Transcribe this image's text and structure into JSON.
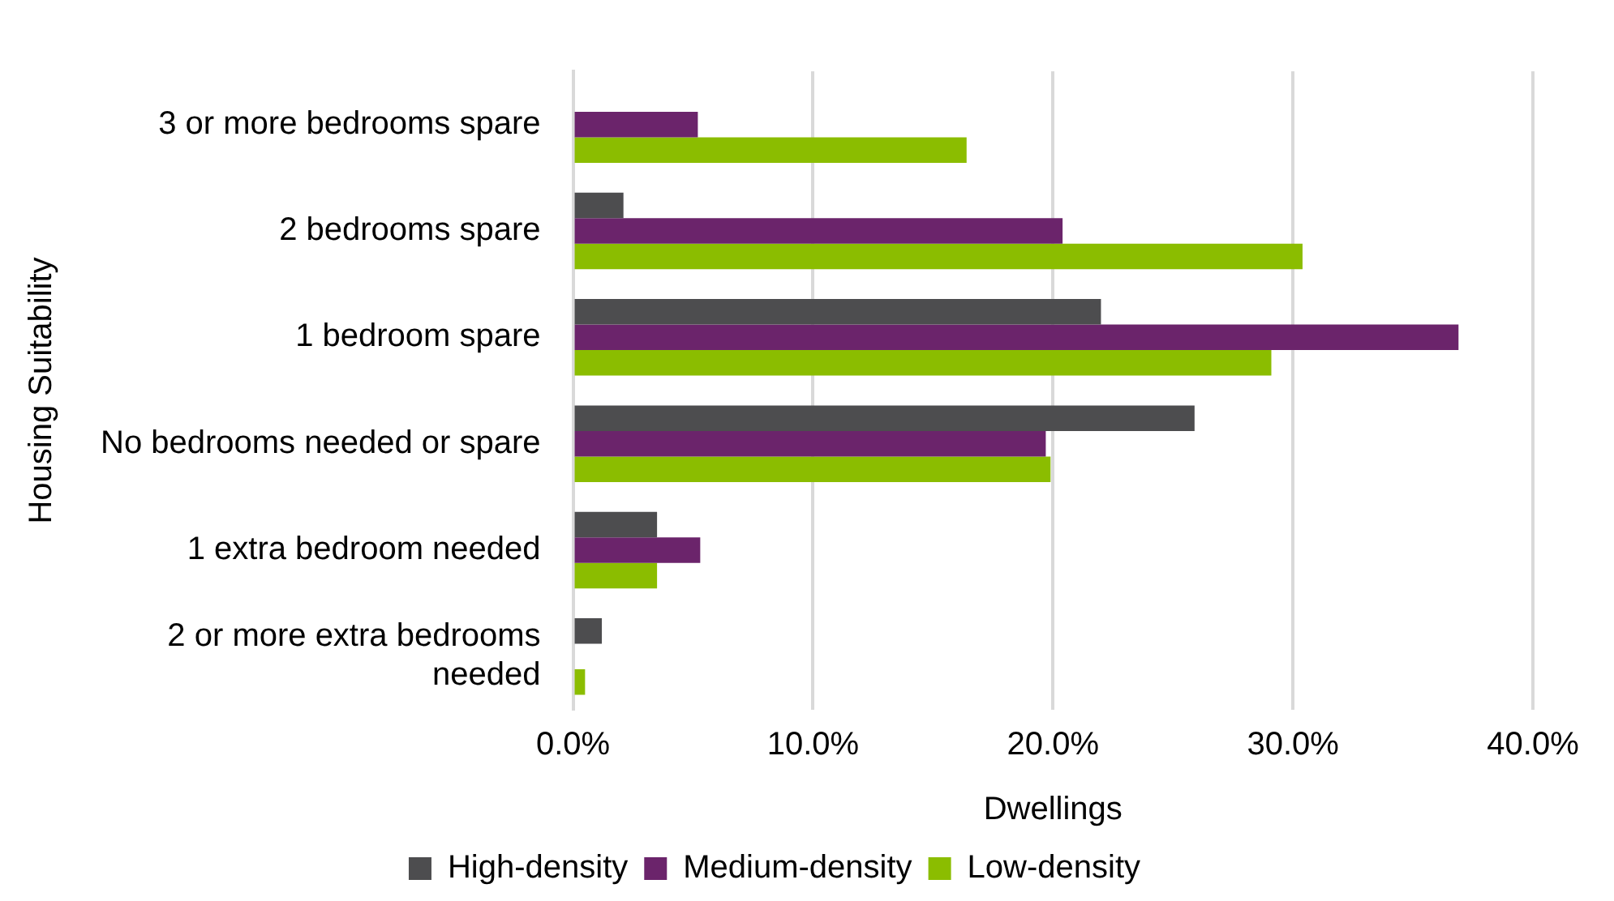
{
  "chart_data": {
    "type": "bar",
    "orientation": "horizontal",
    "xlabel": "Dwellings",
    "ylabel": "Housing Suitability",
    "categories": [
      "3 or more bedrooms spare",
      "2 bedrooms spare",
      "1 bedroom spare",
      "No bedrooms needed or spare",
      "1 extra bedroom needed",
      "2 or more extra bedrooms needed"
    ],
    "series": [
      {
        "name": "High-density",
        "color": "#4d4d4f",
        "values": [
          null,
          2.1,
          22.0,
          25.9,
          3.5,
          1.2
        ]
      },
      {
        "name": "Medium-density",
        "color": "#6b246b",
        "values": [
          5.2,
          20.4,
          36.9,
          19.7,
          5.3,
          null
        ]
      },
      {
        "name": "Low-density",
        "color": "#8bbd00",
        "values": [
          16.4,
          30.4,
          29.1,
          19.9,
          3.5,
          0.5
        ]
      }
    ],
    "xlim": [
      0,
      40
    ],
    "xticks": [
      {
        "value": 0,
        "label": "0.0%"
      },
      {
        "value": 10,
        "label": "10.0%"
      },
      {
        "value": 20,
        "label": "20.0%"
      },
      {
        "value": 30,
        "label": "30.0%"
      },
      {
        "value": 40,
        "label": "40.0%"
      }
    ],
    "grid": "x",
    "legend": "bottom"
  }
}
